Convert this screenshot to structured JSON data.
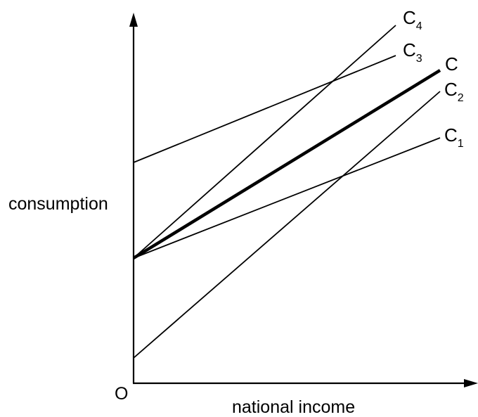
{
  "axes": {
    "y_label": "consumption",
    "x_label": "national income",
    "origin_label": "O"
  },
  "lines": [
    {
      "name": "C",
      "sub": "",
      "bold": true
    },
    {
      "name": "C",
      "sub": "1",
      "bold": false
    },
    {
      "name": "C",
      "sub": "2",
      "bold": false
    },
    {
      "name": "C",
      "sub": "3",
      "bold": false
    },
    {
      "name": "C",
      "sub": "4",
      "bold": false
    }
  ],
  "colors": {
    "line": "#000000",
    "background": "#ffffff"
  }
}
